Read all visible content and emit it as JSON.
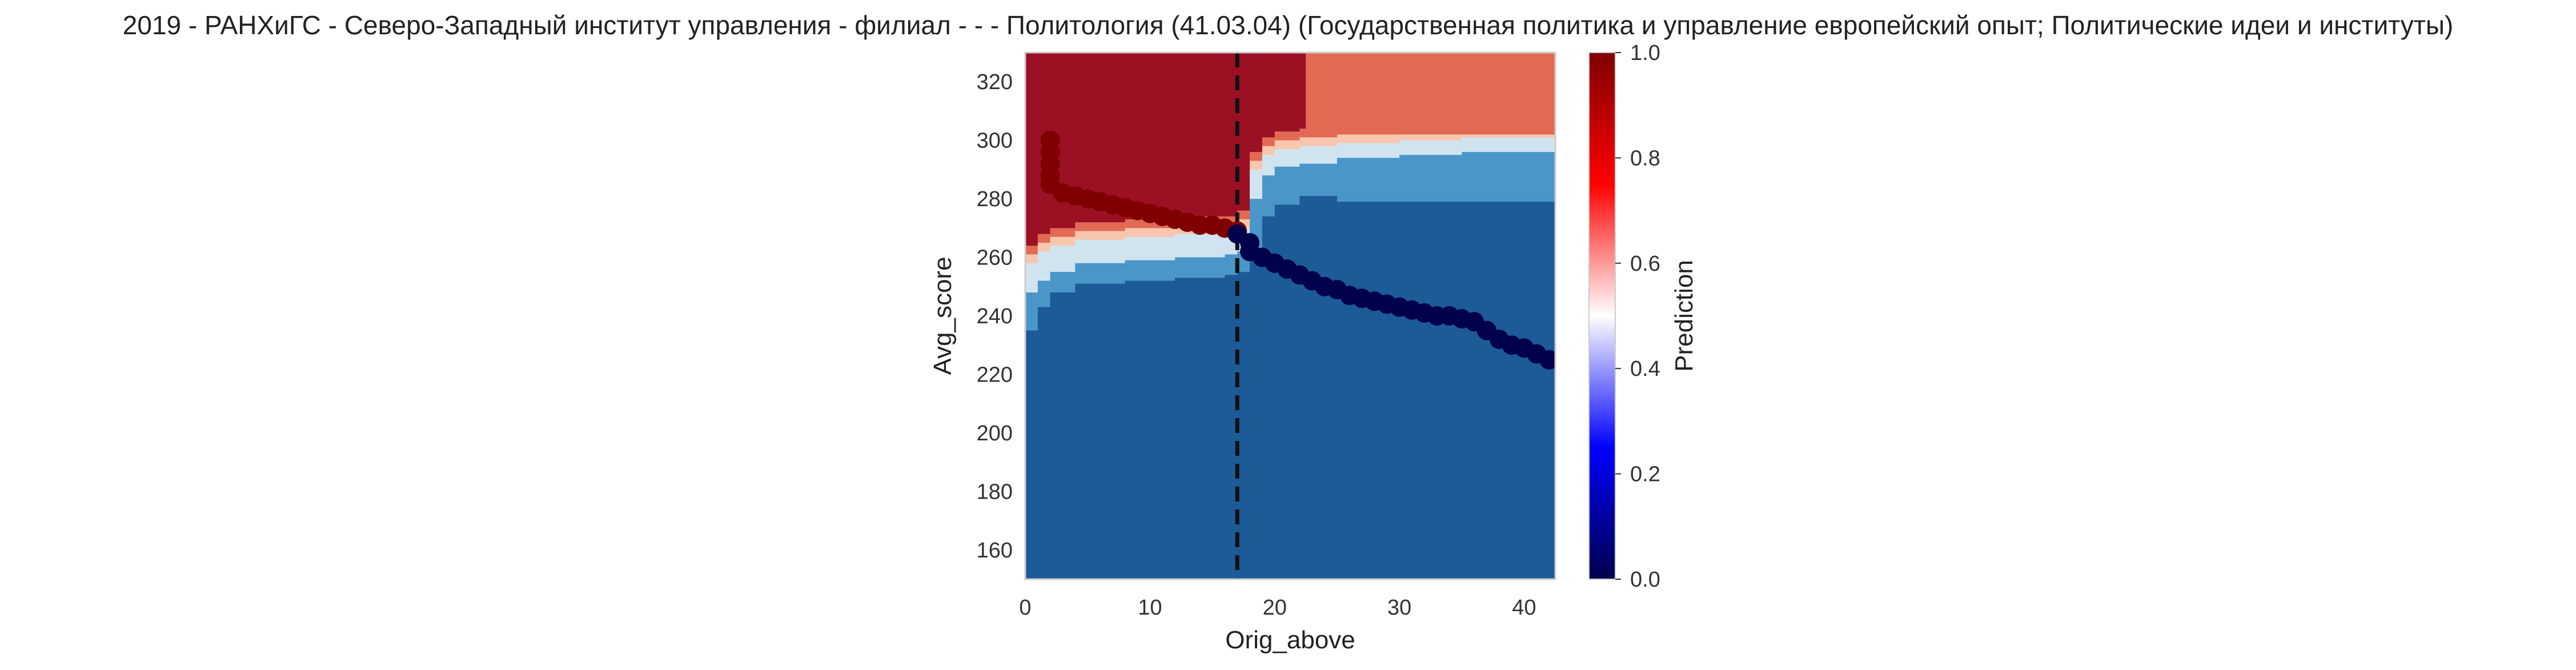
{
  "chart_data": {
    "type": "heatmap",
    "title": "2019 - РАНХиГС - Северо-Западный институт управления - филиал - - - Политология (41.03.04) (Государственная политика и управление  европейский опыт; Политические идеи и институты)",
    "xlabel": "Orig_above",
    "ylabel": "Avg_score",
    "xlim": [
      0,
      42.5
    ],
    "ylim": [
      150,
      330
    ],
    "x_ticks": [
      0,
      10,
      20,
      30,
      40
    ],
    "x_tick_labels": [
      "0",
      "10",
      "20",
      "30",
      "40"
    ],
    "y_ticks": [
      160,
      180,
      200,
      220,
      240,
      260,
      280,
      300,
      320
    ],
    "y_tick_labels": [
      "160",
      "180",
      "200",
      "220",
      "240",
      "260",
      "280",
      "300",
      "320"
    ],
    "grid": false,
    "colorbar": {
      "label": "Prediction",
      "range": [
        0,
        1
      ],
      "ticks": [
        0.0,
        0.2,
        0.4,
        0.6,
        0.8,
        1.0
      ],
      "tick_labels": [
        "0.0",
        "0.2",
        "0.4",
        "0.6",
        "0.8",
        "1.0"
      ],
      "colormap": "seismic",
      "stops": [
        "#00004c",
        "#0000ff",
        "#ffffff",
        "#ff0000",
        "#7f0000"
      ]
    },
    "vertical_reference_line": {
      "x": 17,
      "style": "dashed",
      "color": "#111111"
    },
    "decision_regions": {
      "prediction_colors": {
        "0.1": "#1c5a98",
        "0.25": "#4a96c8",
        "0.4": "#d0e4f0",
        "0.6": "#f8c6ae",
        "0.75": "#e26a55",
        "0.9": "#9c1024"
      },
      "boundary_low": [
        {
          "x": 0,
          "y": 235
        },
        {
          "x": 1,
          "y": 243
        },
        {
          "x": 2,
          "y": 248
        },
        {
          "x": 4,
          "y": 251
        },
        {
          "x": 8,
          "y": 252
        },
        {
          "x": 12,
          "y": 253
        },
        {
          "x": 16,
          "y": 254
        },
        {
          "x": 17,
          "y": 255
        },
        {
          "x": 18,
          "y": 262
        },
        {
          "x": 19,
          "y": 274
        },
        {
          "x": 20,
          "y": 278
        },
        {
          "x": 22,
          "y": 281
        },
        {
          "x": 25,
          "y": 282
        },
        {
          "x": 30,
          "y": 282
        },
        {
          "x": 35,
          "y": 282
        },
        {
          "x": 42.5,
          "y": 282
        }
      ],
      "boundary_mid": [
        {
          "x": 0,
          "y": 248
        },
        {
          "x": 1,
          "y": 252
        },
        {
          "x": 2,
          "y": 255
        },
        {
          "x": 4,
          "y": 258
        },
        {
          "x": 8,
          "y": 259
        },
        {
          "x": 12,
          "y": 260
        },
        {
          "x": 16,
          "y": 261
        },
        {
          "x": 17,
          "y": 262
        },
        {
          "x": 18,
          "y": 280
        },
        {
          "x": 19,
          "y": 288
        },
        {
          "x": 20,
          "y": 291
        },
        {
          "x": 22,
          "y": 292
        },
        {
          "x": 25,
          "y": 294
        },
        {
          "x": 30,
          "y": 295
        },
        {
          "x": 35,
          "y": 296
        },
        {
          "x": 42.5,
          "y": 297
        }
      ],
      "boundary_high": [
        {
          "x": 0,
          "y": 258
        },
        {
          "x": 1,
          "y": 262
        },
        {
          "x": 2,
          "y": 264
        },
        {
          "x": 4,
          "y": 266
        },
        {
          "x": 8,
          "y": 267
        },
        {
          "x": 12,
          "y": 268
        },
        {
          "x": 16,
          "y": 268
        },
        {
          "x": 17,
          "y": 270
        },
        {
          "x": 18,
          "y": 290
        },
        {
          "x": 19,
          "y": 295
        },
        {
          "x": 20,
          "y": 297
        },
        {
          "x": 22,
          "y": 298
        },
        {
          "x": 25,
          "y": 299
        },
        {
          "x": 30,
          "y": 300
        },
        {
          "x": 35,
          "y": 301
        },
        {
          "x": 42.5,
          "y": 302
        }
      ],
      "upper_right_block": {
        "x_from": 22.5,
        "y_from": 302,
        "prediction": 0.75
      }
    },
    "series": [
      {
        "prediction": 1,
        "color": "#7f0000",
        "points": [
          {
            "x": 2,
            "y": 300
          },
          {
            "x": 2,
            "y": 296
          },
          {
            "x": 2,
            "y": 292
          },
          {
            "x": 2,
            "y": 288
          },
          {
            "x": 2,
            "y": 285
          },
          {
            "x": 3,
            "y": 282
          },
          {
            "x": 4,
            "y": 281
          },
          {
            "x": 5,
            "y": 280
          },
          {
            "x": 6,
            "y": 279
          },
          {
            "x": 7,
            "y": 278
          },
          {
            "x": 8,
            "y": 277
          },
          {
            "x": 9,
            "y": 276
          },
          {
            "x": 10,
            "y": 275
          },
          {
            "x": 11,
            "y": 274
          },
          {
            "x": 12,
            "y": 273
          },
          {
            "x": 13,
            "y": 272
          },
          {
            "x": 14,
            "y": 271
          },
          {
            "x": 15,
            "y": 271
          },
          {
            "x": 16,
            "y": 270
          },
          {
            "x": 17,
            "y": 269
          }
        ]
      },
      {
        "prediction": 0,
        "color": "#00004c",
        "points": [
          {
            "x": 17,
            "y": 268
          },
          {
            "x": 18,
            "y": 265
          },
          {
            "x": 18,
            "y": 262
          },
          {
            "x": 19,
            "y": 260
          },
          {
            "x": 20,
            "y": 258
          },
          {
            "x": 21,
            "y": 256
          },
          {
            "x": 22,
            "y": 254
          },
          {
            "x": 23,
            "y": 252
          },
          {
            "x": 24,
            "y": 250
          },
          {
            "x": 25,
            "y": 249
          },
          {
            "x": 26,
            "y": 247
          },
          {
            "x": 27,
            "y": 246
          },
          {
            "x": 28,
            "y": 245
          },
          {
            "x": 29,
            "y": 244
          },
          {
            "x": 30,
            "y": 243
          },
          {
            "x": 31,
            "y": 242
          },
          {
            "x": 32,
            "y": 241
          },
          {
            "x": 33,
            "y": 240
          },
          {
            "x": 34,
            "y": 240
          },
          {
            "x": 35,
            "y": 239
          },
          {
            "x": 36,
            "y": 238
          },
          {
            "x": 37,
            "y": 235
          },
          {
            "x": 38,
            "y": 232
          },
          {
            "x": 39,
            "y": 230
          },
          {
            "x": 40,
            "y": 229
          },
          {
            "x": 41,
            "y": 227
          },
          {
            "x": 42,
            "y": 225
          }
        ]
      }
    ]
  }
}
